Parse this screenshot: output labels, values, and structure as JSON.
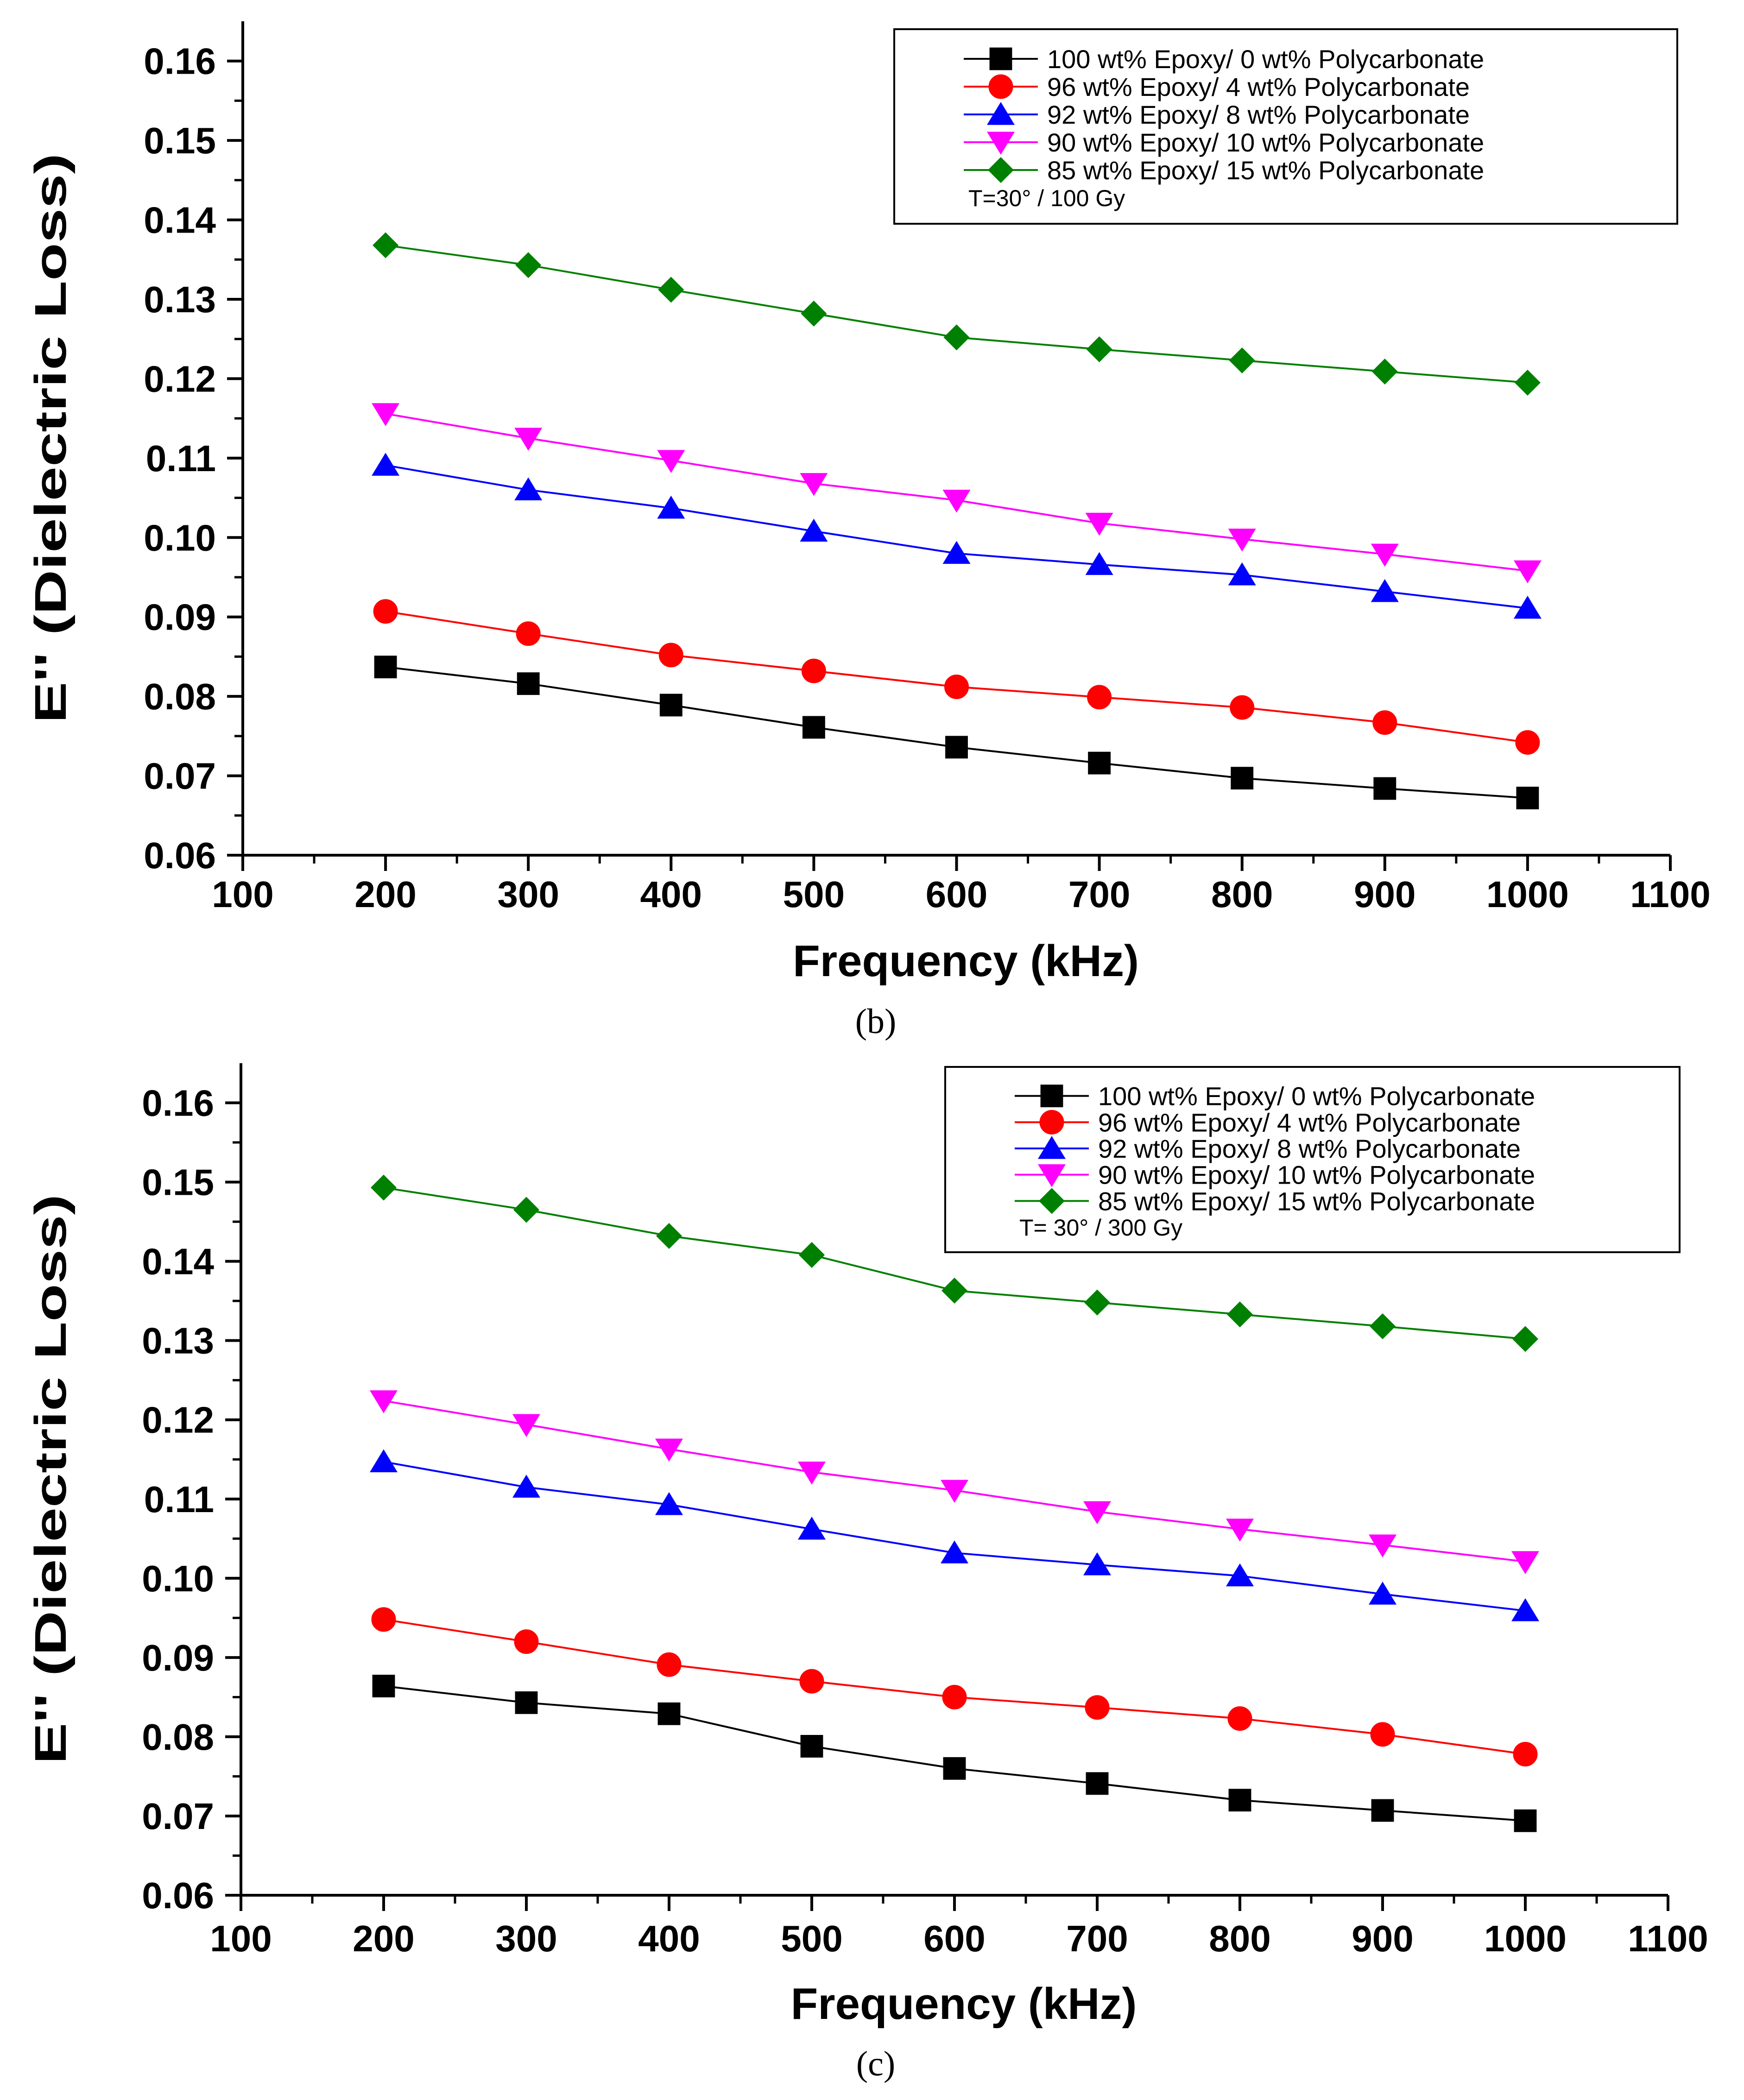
{
  "chart_data": [
    {
      "type": "line",
      "panel_label": "(b)",
      "xlabel": "Frequency (kHz)",
      "ylabel": "E'' (Dielectric Loss)",
      "xlim": [
        100,
        1100
      ],
      "ylim": [
        0.06,
        0.165
      ],
      "x_ticks": [
        "100",
        "200",
        "300",
        "400",
        "500",
        "600",
        "700",
        "800",
        "900",
        "1000",
        "1100"
      ],
      "y_ticks": [
        "0.06",
        "0.07",
        "0.08",
        "0.09",
        "0.10",
        "0.11",
        "0.12",
        "0.13",
        "0.14",
        "0.15",
        "0.16"
      ],
      "grid": false,
      "legend_position": "top-right",
      "annotation": "T=30° / 100 Gy",
      "x": [
        200,
        300,
        400,
        500,
        600,
        700,
        800,
        900,
        1000
      ],
      "series": [
        {
          "name": "100 wt% Epoxy/ 0 wt% Polycarbonate",
          "marker": "square",
          "color": "#000000",
          "values": [
            0.0837,
            0.0816,
            0.0789,
            0.0761,
            0.0736,
            0.0716,
            0.0697,
            0.0684,
            0.0672
          ]
        },
        {
          "name": "96 wt% Epoxy/ 4 wt% Polycarbonate",
          "marker": "circle",
          "color": "#ff0000",
          "values": [
            0.0907,
            0.0879,
            0.0852,
            0.0832,
            0.0812,
            0.0799,
            0.0786,
            0.0767,
            0.0742
          ]
        },
        {
          "name": "92 wt% Epoxy/ 8 wt% Polycarbonate",
          "marker": "triangle-up",
          "color": "#0000ff",
          "values": [
            0.1091,
            0.106,
            0.1037,
            0.1008,
            0.098,
            0.0966,
            0.0953,
            0.0932,
            0.0911
          ]
        },
        {
          "name": "90 wt% Epoxy/ 10 wt% Polycarbonate",
          "marker": "triangle-down",
          "color": "#ff00ff",
          "values": [
            0.1156,
            0.1125,
            0.1097,
            0.1068,
            0.1047,
            0.1018,
            0.0998,
            0.0979,
            0.0958
          ]
        },
        {
          "name": "85 wt% Epoxy/ 15 wt% Polycarbonate",
          "marker": "diamond",
          "color": "#008000",
          "values": [
            0.1368,
            0.1343,
            0.1312,
            0.1282,
            0.1252,
            0.1237,
            0.1223,
            0.1209,
            0.1195
          ]
        }
      ]
    },
    {
      "type": "line",
      "panel_label": "(c)",
      "xlabel": "Frequency (kHz)",
      "ylabel": "E'' (Dielectric Loss)",
      "xlim": [
        100,
        1100
      ],
      "ylim": [
        0.06,
        0.165
      ],
      "x_ticks": [
        "100",
        "200",
        "300",
        "400",
        "500",
        "600",
        "700",
        "800",
        "900",
        "1000",
        "1100"
      ],
      "y_ticks": [
        "0.06",
        "0.07",
        "0.08",
        "0.09",
        "0.10",
        "0.11",
        "0.12",
        "0.13",
        "0.14",
        "0.15",
        "0.16"
      ],
      "grid": false,
      "legend_position": "top-right",
      "annotation": "T= 30° / 300 Gy",
      "x": [
        200,
        300,
        400,
        500,
        600,
        700,
        800,
        900,
        1000
      ],
      "series": [
        {
          "name": "100 wt% Epoxy/ 0 wt% Polycarbonate",
          "marker": "square",
          "color": "#000000",
          "values": [
            0.0864,
            0.0843,
            0.0829,
            0.0788,
            0.076,
            0.0741,
            0.072,
            0.0707,
            0.0694
          ]
        },
        {
          "name": "96 wt% Epoxy/ 4 wt% Polycarbonate",
          "marker": "circle",
          "color": "#ff0000",
          "values": [
            0.0948,
            0.092,
            0.0891,
            0.087,
            0.085,
            0.0837,
            0.0823,
            0.0803,
            0.0778
          ]
        },
        {
          "name": "92 wt% Epoxy/ 8 wt% Polycarbonate",
          "marker": "triangle-up",
          "color": "#0000ff",
          "values": [
            0.1147,
            0.1115,
            0.1093,
            0.1062,
            0.1032,
            0.1017,
            0.1003,
            0.098,
            0.0959
          ]
        },
        {
          "name": "90 wt% Epoxy/ 10 wt% Polycarbonate",
          "marker": "triangle-down",
          "color": "#ff00ff",
          "values": [
            0.1224,
            0.1194,
            0.1163,
            0.1134,
            0.1111,
            0.1084,
            0.1062,
            0.1042,
            0.1021
          ]
        },
        {
          "name": "85 wt% Epoxy/ 15 wt% Polycarbonate",
          "marker": "diamond",
          "color": "#008000",
          "values": [
            0.1493,
            0.1465,
            0.1432,
            0.1408,
            0.1363,
            0.1348,
            0.1333,
            0.1318,
            0.1302
          ]
        }
      ]
    }
  ]
}
